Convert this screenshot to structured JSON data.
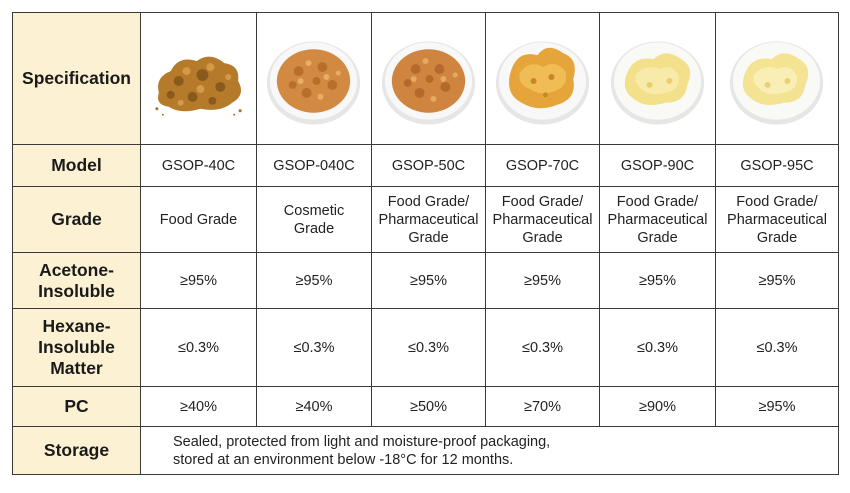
{
  "table": {
    "headers": {
      "specification": "Specification",
      "model": "Model",
      "grade": "Grade",
      "acetone": "Acetone-\nInsoluble",
      "hexane": "Hexane-\nInsoluble\nMatter",
      "pc": "PC",
      "storage": "Storage"
    },
    "products": [
      {
        "model": "GSOP-40C",
        "grade": "Food Grade",
        "acetone": "≥95%",
        "hexane": "≤0.3%",
        "pc": "≥40%",
        "image": "brown-granules-pile"
      },
      {
        "model": "GSOP-040C",
        "grade": "Cosmetic\nGrade",
        "acetone": "≥95%",
        "hexane": "≤0.3%",
        "pc": "≥40%",
        "image": "tan-granules-bowl"
      },
      {
        "model": "GSOP-50C",
        "grade": "Food Grade/\nPharmaceutical\nGrade",
        "acetone": "≥95%",
        "hexane": "≤0.3%",
        "pc": "≥50%",
        "image": "tan-granules-bowl"
      },
      {
        "model": "GSOP-70C",
        "grade": "Food Grade/\nPharmaceutical\nGrade",
        "acetone": "≥95%",
        "hexane": "≤0.3%",
        "pc": "≥70%",
        "image": "amber-paste-bowl"
      },
      {
        "model": "GSOP-90C",
        "grade": "Food Grade/\nPharmaceutical\nGrade",
        "acetone": "≥95%",
        "hexane": "≤0.3%",
        "pc": "≥90%",
        "image": "pale-yellow-powder-bowl"
      },
      {
        "model": "GSOP-95C",
        "grade": "Food Grade/\nPharmaceutical\nGrade",
        "acetone": "≥95%",
        "hexane": "≤0.3%",
        "pc": "≥95%",
        "image": "pale-yellow-powder-bowl"
      }
    ],
    "storage": [
      "Sealed, protected from light and moisture-proof packaging,",
      "stored at an environment below -18°C for 12 months."
    ]
  },
  "colors": {
    "header_bg": "#fcf1d3",
    "border": "#3a3a3a"
  }
}
